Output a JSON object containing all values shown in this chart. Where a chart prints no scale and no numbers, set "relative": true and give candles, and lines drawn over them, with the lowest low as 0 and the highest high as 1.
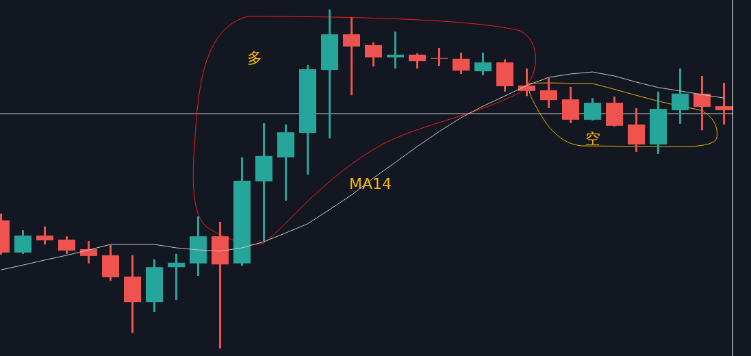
{
  "chart_data": {
    "type": "candlestick",
    "relative": true,
    "categories": [
      null,
      null,
      null,
      null,
      null,
      null,
      null,
      null,
      null,
      null,
      null,
      null,
      null,
      null,
      null,
      null,
      null,
      null,
      null,
      null,
      null,
      null,
      null,
      null,
      null,
      null,
      null,
      null,
      null,
      null,
      null,
      null,
      null,
      null
    ],
    "ohlc": [
      [
        0.378,
        0.398,
        0.277,
        0.283
      ],
      [
        0.283,
        0.349,
        0.279,
        0.333
      ],
      [
        0.333,
        0.36,
        0.307,
        0.319
      ],
      [
        0.321,
        0.331,
        0.279,
        0.289
      ],
      [
        0.293,
        0.317,
        0.251,
        0.273
      ],
      [
        0.275,
        0.305,
        0.2,
        0.21
      ],
      [
        0.212,
        0.275,
        0.046,
        0.137
      ],
      [
        0.137,
        0.263,
        0.107,
        0.24
      ],
      [
        0.24,
        0.279,
        0.143,
        0.253
      ],
      [
        0.251,
        0.39,
        0.214,
        0.331
      ],
      [
        0.331,
        0.374,
        0,
        0.248
      ],
      [
        0.251,
        0.564,
        0.244,
        0.495
      ],
      [
        0.493,
        0.665,
        0.317,
        0.568
      ],
      [
        0.564,
        0.661,
        0.436,
        0.638
      ],
      [
        0.636,
        0.836,
        0.513,
        0.824
      ],
      [
        0.822,
        1,
        0.62,
        0.927
      ],
      [
        0.927,
        0.976,
        0.747,
        0.891
      ],
      [
        0.895,
        0.903,
        0.832,
        0.859
      ],
      [
        0.859,
        0.935,
        0.826,
        0.867
      ],
      [
        0.867,
        0.871,
        0.826,
        0.848
      ],
      [
        0.857,
        0.887,
        0.834,
        0.855
      ],
      [
        0.855,
        0.873,
        0.81,
        0.82
      ],
      [
        0.818,
        0.873,
        0.806,
        0.844
      ],
      [
        0.844,
        0.853,
        0.758,
        0.774
      ],
      [
        0.776,
        0.826,
        0.745,
        0.76
      ],
      [
        0.762,
        0.798,
        0.709,
        0.733
      ],
      [
        0.735,
        0.772,
        0.665,
        0.675
      ],
      [
        0.675,
        0.739,
        0.673,
        0.725
      ],
      [
        0.725,
        0.743,
        0.655,
        0.657
      ],
      [
        0.661,
        0.709,
        0.58,
        0.602
      ],
      [
        0.602,
        0.758,
        0.574,
        0.707
      ],
      [
        0.703,
        0.826,
        0.663,
        0.752
      ],
      [
        0.752,
        0.804,
        0.644,
        0.713
      ],
      [
        0.715,
        0.784,
        0.661,
        0.703
      ]
    ],
    "colors": [
      "#ef5350",
      "#26a69a",
      "#ef5350",
      "#ef5350",
      "#ef5350",
      "#ef5350",
      "#ef5350",
      "#26a69a",
      "#26a69a",
      "#26a69a",
      "#ef5350",
      "#26a69a",
      "#26a69a",
      "#26a69a",
      "#26a69a",
      "#26a69a",
      "#ef5350",
      "#ef5350",
      "#26a69a",
      "#ef5350",
      "#ef5350",
      "#ef5350",
      "#26a69a",
      "#ef5350",
      "#ef5350",
      "#ef5350",
      "#ef5350",
      "#26a69a",
      "#ef5350",
      "#ef5350",
      "#26a69a",
      "#26a69a",
      "#ef5350",
      "#ef5350"
    ],
    "series": [
      {
        "type": "line",
        "color": "#c8c8c8",
        "values": [
          0.232,
          0.246,
          0.261,
          0.275,
          0.291,
          0.307,
          0.307,
          0.307,
          0.297,
          0.291,
          0.287,
          0.297,
          0.315,
          0.341,
          0.368,
          0.41,
          0.453,
          0.503,
          0.549,
          0.596,
          0.64,
          0.681,
          0.715,
          0.745,
          0.776,
          0.8,
          0.81,
          0.816,
          0.804,
          0.786,
          0.77,
          0.76,
          0.749,
          0.739
        ]
      }
    ],
    "ref_lines": [
      {
        "axis": "y",
        "value": 0.693,
        "color": "#c8c8c8"
      }
    ],
    "annotations": [
      "多",
      "空",
      "MA14"
    ]
  }
}
